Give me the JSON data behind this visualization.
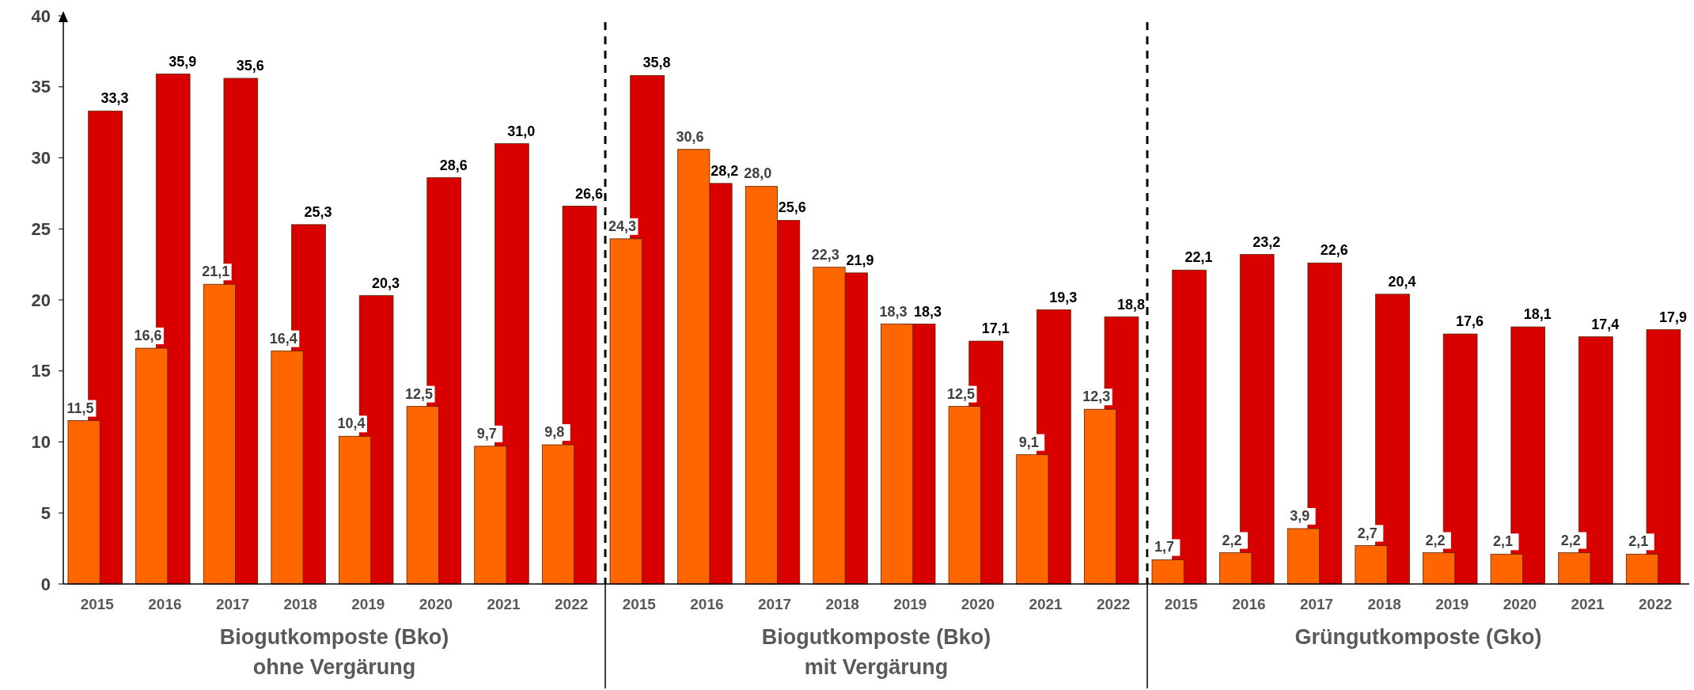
{
  "chart_data": {
    "type": "bar",
    "categories": [
      "2015",
      "2016",
      "2017",
      "2018",
      "2019",
      "2020",
      "2021",
      "2022",
      "2015",
      "2016",
      "2017",
      "2018",
      "2019",
      "2020",
      "2021",
      "2022",
      "2015",
      "2016",
      "2017",
      "2018",
      "2019",
      "2020",
      "2021",
      "2022"
    ],
    "series": [
      {
        "color": "#ff6600",
        "values": [
          11.5,
          16.6,
          21.1,
          16.4,
          10.4,
          12.5,
          9.7,
          9.8,
          24.3,
          30.6,
          28.0,
          22.3,
          18.3,
          12.5,
          9.1,
          12.3,
          1.7,
          2.2,
          3.9,
          2.7,
          2.2,
          2.1,
          2.2,
          2.1
        ],
        "value_labels": [
          "11,5",
          "16,6",
          "21,1",
          "16,4",
          "10,4",
          "12,5",
          "9,7",
          "9,8",
          "24,3",
          "30,6",
          "28,0",
          "22,3",
          "18,3",
          "12,5",
          "9,1",
          "12,3",
          "1,7",
          "2,2",
          "3,9",
          "2,7",
          "2,2",
          "2,1",
          "2,2",
          "2,1"
        ]
      },
      {
        "color": "#d90000",
        "values": [
          33.3,
          35.9,
          35.6,
          25.3,
          20.3,
          28.6,
          31.0,
          26.6,
          35.8,
          28.2,
          25.6,
          21.9,
          18.3,
          17.1,
          19.3,
          18.8,
          22.1,
          23.2,
          22.6,
          20.4,
          17.6,
          18.1,
          17.4,
          17.9
        ],
        "value_labels": [
          "33,3",
          "35,9",
          "35,6",
          "25,3",
          "20,3",
          "28,6",
          "31,0",
          "26,6",
          "35,8",
          "28,2",
          "25,6",
          "21,9",
          "18,3",
          "17,1",
          "19,3",
          "18,8",
          "22,1",
          "23,2",
          "22,6",
          "20,4",
          "17,6",
          "18,1",
          "17,4",
          "17,9"
        ]
      }
    ],
    "ylim": [
      0,
      40
    ],
    "yticks": [
      0,
      5,
      10,
      15,
      20,
      25,
      30,
      35,
      40
    ],
    "grid": false,
    "annotations": [
      "Biogutkomposte (Bko)\nohne Vergärung",
      "Biogutkomposte (Bko)\nmit Vergärung",
      "Grüngutkomposte (Gko)"
    ]
  }
}
